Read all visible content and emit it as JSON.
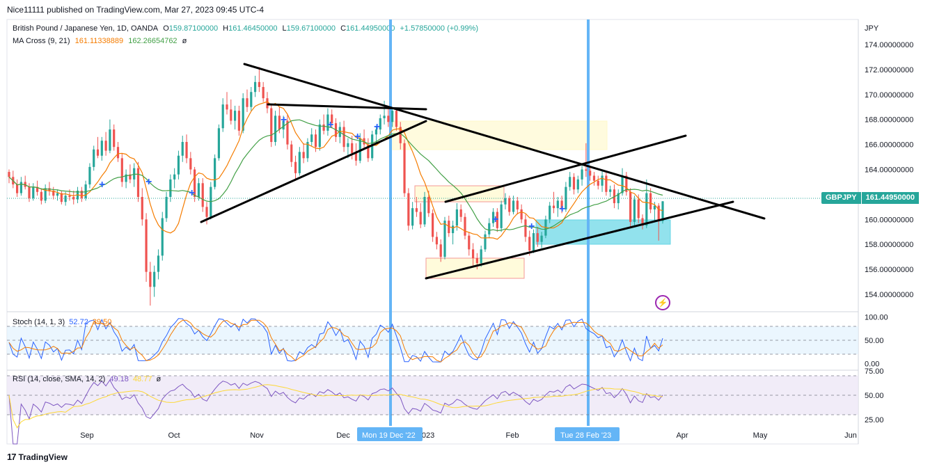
{
  "header": {
    "published": "Nice11111 published on TradingView.com, Mar 27, 2023 09:45 UTC-4"
  },
  "legend": {
    "symbol": "British Pound / Japanese Yen, 1D, OANDA",
    "o_label": "O",
    "o": "159.87100000",
    "h_label": "H",
    "h": "161.46450000",
    "l_label": "L",
    "l": "159.67100000",
    "c_label": "C",
    "c": "161.44950000",
    "change": "+1.57850000 (+0.99%)",
    "ma_name": "MA Cross (9, 21)",
    "ma_fast": "161.11338889",
    "ma_slow": "162.26654762",
    "ma_eye": "ø"
  },
  "stoch": {
    "name": "Stoch (14, 1, 3)",
    "k": "52.72",
    "d": "39.50"
  },
  "rsi": {
    "name": "RSI (14, close, SMA, 14, 2)",
    "rsi": "49.18",
    "sma": "48.77",
    "eye": "ø"
  },
  "price_tag": {
    "symbol": "GBPJPY",
    "value": "161.44950000"
  },
  "footer": {
    "brand": "TradingView",
    "logo": "17"
  },
  "colors": {
    "up": "#26a69a",
    "down": "#ef5350",
    "ma_fast": "#f57c00",
    "ma_slow": "#43a047",
    "vline": "#64b5f6",
    "stoch_k": "#2962ff",
    "stoch_d": "#f57c00",
    "rsi": "#7e57c2",
    "rsi_sma": "#fdd835",
    "accent": "#26a69a"
  },
  "icons": {
    "cross_marker": "plus-icon",
    "alert": "lightning-icon"
  },
  "chart_data": {
    "type": "candlestick",
    "symbol": "GBPJPY",
    "currency": "JPY",
    "price_axis": {
      "ticks": [
        "174.00000000",
        "172.00000000",
        "170.00000000",
        "168.00000000",
        "166.00000000",
        "164.00000000",
        "162.00000000",
        "160.00000000",
        "158.00000000",
        "156.00000000",
        "154.00000000"
      ],
      "ylim": [
        153,
        175
      ]
    },
    "time_axis": {
      "ticks": [
        "Sep",
        "Oct",
        "Nov",
        "Dec",
        "2023",
        "Feb",
        "Apr",
        "May",
        "Jun"
      ],
      "highlighted": [
        "Mon 19 Dec '22",
        "Tue 28 Feb '23"
      ]
    },
    "candles": [
      [
        163.8,
        164.0,
        162.9,
        163.4
      ],
      [
        163.4,
        163.9,
        162.5,
        162.8
      ],
      [
        162.8,
        163.2,
        161.8,
        162.1
      ],
      [
        162.1,
        163.4,
        161.9,
        163.0
      ],
      [
        163.0,
        163.5,
        162.4,
        162.6
      ],
      [
        162.6,
        162.9,
        161.4,
        161.7
      ],
      [
        161.7,
        162.9,
        161.5,
        162.6
      ],
      [
        162.6,
        163.1,
        161.9,
        162.2
      ],
      [
        162.2,
        162.5,
        161.2,
        161.5
      ],
      [
        161.5,
        162.8,
        161.3,
        162.5
      ],
      [
        162.5,
        163.0,
        161.9,
        162.3
      ],
      [
        162.3,
        162.6,
        161.6,
        161.9
      ],
      [
        161.9,
        162.4,
        161.5,
        162.1
      ],
      [
        162.1,
        162.3,
        161.2,
        161.4
      ],
      [
        161.4,
        162.2,
        161.1,
        161.9
      ],
      [
        161.9,
        162.4,
        161.5,
        161.8
      ],
      [
        161.8,
        162.3,
        161.2,
        161.6
      ],
      [
        161.6,
        162.6,
        161.3,
        162.3
      ],
      [
        162.3,
        162.6,
        161.4,
        161.7
      ],
      [
        161.7,
        163.1,
        161.5,
        162.8
      ],
      [
        162.8,
        164.5,
        162.5,
        164.2
      ],
      [
        164.2,
        165.9,
        163.9,
        165.6
      ],
      [
        165.6,
        166.6,
        164.9,
        165.1
      ],
      [
        165.1,
        166.6,
        164.7,
        166.3
      ],
      [
        166.3,
        167.0,
        165.1,
        165.5
      ],
      [
        165.5,
        168.0,
        165.3,
        167.2
      ],
      [
        167.2,
        167.6,
        165.5,
        165.8
      ],
      [
        165.8,
        166.2,
        164.6,
        164.9
      ],
      [
        164.9,
        165.3,
        162.6,
        163.0
      ],
      [
        163.0,
        164.0,
        162.5,
        163.6
      ],
      [
        163.6,
        164.4,
        162.9,
        163.2
      ],
      [
        163.2,
        164.5,
        162.6,
        164.1
      ],
      [
        164.1,
        164.6,
        161.4,
        161.8
      ],
      [
        161.8,
        162.5,
        159.5,
        160.0
      ],
      [
        160.0,
        160.5,
        155.0,
        155.8
      ],
      [
        155.8,
        156.6,
        153.1,
        154.6
      ],
      [
        154.6,
        156.3,
        153.8,
        155.8
      ],
      [
        155.8,
        157.6,
        155.2,
        157.1
      ],
      [
        157.1,
        160.6,
        156.7,
        160.1
      ],
      [
        160.1,
        162.2,
        159.8,
        161.8
      ],
      [
        161.8,
        163.6,
        161.4,
        163.2
      ],
      [
        163.2,
        164.1,
        162.5,
        163.6
      ],
      [
        163.6,
        165.5,
        163.2,
        165.1
      ],
      [
        165.1,
        166.7,
        164.6,
        166.2
      ],
      [
        166.2,
        166.8,
        164.5,
        164.9
      ],
      [
        164.9,
        165.4,
        163.6,
        164.0
      ],
      [
        164.0,
        164.2,
        161.4,
        161.8
      ],
      [
        161.8,
        163.3,
        161.5,
        162.9
      ],
      [
        162.9,
        163.3,
        160.6,
        161.0
      ],
      [
        161.0,
        161.4,
        159.6,
        160.2
      ],
      [
        160.2,
        163.0,
        160.0,
        162.6
      ],
      [
        162.6,
        165.2,
        162.4,
        164.9
      ],
      [
        164.9,
        167.6,
        164.7,
        167.3
      ],
      [
        167.3,
        169.7,
        167.0,
        169.2
      ],
      [
        169.2,
        170.2,
        168.4,
        168.8
      ],
      [
        168.8,
        169.6,
        167.6,
        167.9
      ],
      [
        167.9,
        169.1,
        167.2,
        168.7
      ],
      [
        168.7,
        169.1,
        166.7,
        167.1
      ],
      [
        167.1,
        170.1,
        166.9,
        169.7
      ],
      [
        169.7,
        170.4,
        168.6,
        169.0
      ],
      [
        169.0,
        170.6,
        168.7,
        170.2
      ],
      [
        170.2,
        171.5,
        169.8,
        171.0
      ],
      [
        171.0,
        172.2,
        170.2,
        170.6
      ],
      [
        170.6,
        171.0,
        169.4,
        169.7
      ],
      [
        169.7,
        170.2,
        168.5,
        168.9
      ],
      [
        168.9,
        169.2,
        165.8,
        166.2
      ],
      [
        166.2,
        168.7,
        165.9,
        168.3
      ],
      [
        168.3,
        169.0,
        166.9,
        167.2
      ],
      [
        167.2,
        168.3,
        166.5,
        167.9
      ],
      [
        167.9,
        168.4,
        165.6,
        166.0
      ],
      [
        166.0,
        166.3,
        164.2,
        164.6
      ],
      [
        164.6,
        165.1,
        163.1,
        163.7
      ],
      [
        163.7,
        165.8,
        163.5,
        165.4
      ],
      [
        165.4,
        166.1,
        164.5,
        164.9
      ],
      [
        164.9,
        166.5,
        164.6,
        166.2
      ],
      [
        166.2,
        167.3,
        165.9,
        166.8
      ],
      [
        166.8,
        167.2,
        165.4,
        165.8
      ],
      [
        165.8,
        168.0,
        165.5,
        167.6
      ],
      [
        167.6,
        168.4,
        166.8,
        167.1
      ],
      [
        167.1,
        168.9,
        166.7,
        168.4
      ],
      [
        168.4,
        168.8,
        167.3,
        167.7
      ],
      [
        167.7,
        168.1,
        166.2,
        166.6
      ],
      [
        166.6,
        167.8,
        166.1,
        167.4
      ],
      [
        167.4,
        167.9,
        165.4,
        165.8
      ],
      [
        165.8,
        166.5,
        164.9,
        166.1
      ],
      [
        166.1,
        166.7,
        164.8,
        165.3
      ],
      [
        165.3,
        166.1,
        164.3,
        164.7
      ],
      [
        164.7,
        166.9,
        164.5,
        166.5
      ],
      [
        166.5,
        167.2,
        165.7,
        166.0
      ],
      [
        166.0,
        166.5,
        164.6,
        164.9
      ],
      [
        164.9,
        167.1,
        164.7,
        166.8
      ],
      [
        166.8,
        167.5,
        166.1,
        167.2
      ],
      [
        167.2,
        168.4,
        166.8,
        168.1
      ],
      [
        168.1,
        169.5,
        167.6,
        168.3
      ],
      [
        168.3,
        169.1,
        167.4,
        167.8
      ],
      [
        167.8,
        169.0,
        167.4,
        168.7
      ],
      [
        168.7,
        168.9,
        167.1,
        167.4
      ],
      [
        167.4,
        167.8,
        165.6,
        166.1
      ],
      [
        166.1,
        166.4,
        161.8,
        162.1
      ],
      [
        162.1,
        162.5,
        159.1,
        159.5
      ],
      [
        159.5,
        161.4,
        159.2,
        160.9
      ],
      [
        160.9,
        161.8,
        160.2,
        160.6
      ],
      [
        160.6,
        161.3,
        159.3,
        159.6
      ],
      [
        159.6,
        162.2,
        159.4,
        161.8
      ],
      [
        161.8,
        162.3,
        160.2,
        160.5
      ],
      [
        160.5,
        160.8,
        158.2,
        158.6
      ],
      [
        158.6,
        159.0,
        157.6,
        158.0
      ],
      [
        158.0,
        158.4,
        156.6,
        157.0
      ],
      [
        157.0,
        160.2,
        156.8,
        159.9
      ],
      [
        159.9,
        160.3,
        158.6,
        158.9
      ],
      [
        158.9,
        159.9,
        158.0,
        159.5
      ],
      [
        159.5,
        161.3,
        159.1,
        160.8
      ],
      [
        160.8,
        161.2,
        159.8,
        160.2
      ],
      [
        160.2,
        160.5,
        158.4,
        158.7
      ],
      [
        158.7,
        159.0,
        157.1,
        157.6
      ],
      [
        157.6,
        158.1,
        156.3,
        156.9
      ],
      [
        156.9,
        157.3,
        156.0,
        156.5
      ],
      [
        156.5,
        157.9,
        156.2,
        157.6
      ],
      [
        157.6,
        159.1,
        157.4,
        158.8
      ],
      [
        158.8,
        160.1,
        158.5,
        159.7
      ],
      [
        159.7,
        160.9,
        159.4,
        160.6
      ],
      [
        160.6,
        160.9,
        159.0,
        159.3
      ],
      [
        159.3,
        161.5,
        159.0,
        161.2
      ],
      [
        161.2,
        162.1,
        160.8,
        161.7
      ],
      [
        161.7,
        161.9,
        160.3,
        160.6
      ],
      [
        160.6,
        161.9,
        160.4,
        161.5
      ],
      [
        161.5,
        161.8,
        160.4,
        160.8
      ],
      [
        160.8,
        161.2,
        159.7,
        160.0
      ],
      [
        160.0,
        160.4,
        158.2,
        158.6
      ],
      [
        158.6,
        159.1,
        157.1,
        157.5
      ],
      [
        157.5,
        159.2,
        157.3,
        158.9
      ],
      [
        158.9,
        159.4,
        157.8,
        158.2
      ],
      [
        158.2,
        159.0,
        157.7,
        158.7
      ],
      [
        158.7,
        160.3,
        158.5,
        160.0
      ],
      [
        160.0,
        161.4,
        159.7,
        161.1
      ],
      [
        161.1,
        162.2,
        160.5,
        160.9
      ],
      [
        160.9,
        161.8,
        160.2,
        161.5
      ],
      [
        161.5,
        161.9,
        160.5,
        160.8
      ],
      [
        160.8,
        163.0,
        160.6,
        162.6
      ],
      [
        162.6,
        163.8,
        162.3,
        163.4
      ],
      [
        163.4,
        163.7,
        162.0,
        162.4
      ],
      [
        162.4,
        163.5,
        162.1,
        163.2
      ],
      [
        163.2,
        164.3,
        162.7,
        164.0
      ],
      [
        164.0,
        166.1,
        163.4,
        163.9
      ],
      [
        163.9,
        164.2,
        163.1,
        163.5
      ],
      [
        163.5,
        163.8,
        162.7,
        163.1
      ],
      [
        163.1,
        163.5,
        162.4,
        162.7
      ],
      [
        162.7,
        163.9,
        162.2,
        163.5
      ],
      [
        163.5,
        163.8,
        161.9,
        162.2
      ],
      [
        162.2,
        162.7,
        161.8,
        162.4
      ],
      [
        162.4,
        162.8,
        160.9,
        161.3
      ],
      [
        161.3,
        162.4,
        160.8,
        162.1
      ],
      [
        162.1,
        164.1,
        161.9,
        163.5
      ],
      [
        163.5,
        163.8,
        161.9,
        162.2
      ],
      [
        162.2,
        162.5,
        159.4,
        159.8
      ],
      [
        159.8,
        161.9,
        159.5,
        161.6
      ],
      [
        161.6,
        162.0,
        159.7,
        160.1
      ],
      [
        160.1,
        160.4,
        159.2,
        159.5
      ],
      [
        159.5,
        163.2,
        159.3,
        162.1
      ],
      [
        162.1,
        162.5,
        160.5,
        160.8
      ],
      [
        160.8,
        161.4,
        159.8,
        161.1
      ],
      [
        161.1,
        161.3,
        158.3,
        159.87
      ],
      [
        159.87,
        161.4645,
        159.671,
        161.4495
      ]
    ],
    "stoch_last": {
      "k": 52.72,
      "d": 39.5
    },
    "stoch_levels": [
      80,
      50,
      20
    ],
    "stoch_axis": [
      "100.00",
      "50.00",
      "0.00"
    ],
    "rsi_last": {
      "rsi": 49.18,
      "sma": 48.77
    },
    "rsi_levels": [
      70,
      50,
      30
    ],
    "rsi_axis": [
      "75.00",
      "50.00",
      "25.00"
    ]
  }
}
